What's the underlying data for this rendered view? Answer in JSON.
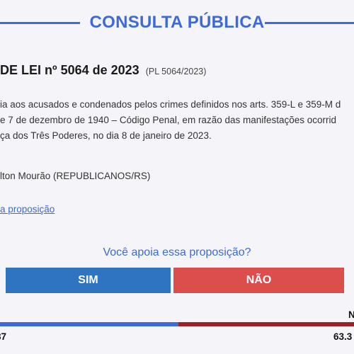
{
  "header": {
    "title": "CONSULTA PÚBLICA"
  },
  "proposal": {
    "title": "DE LEI nº 5064 de 2023",
    "code": "(PL 5064/2023)",
    "summary_lines": [
      "ia aos acusados e condenados pelos crimes definidos nos arts. 359-L e 359-M d",
      "e 7 de dezembro de 1940 – Código Penal, em razão das manifestações ocorrid",
      "ça dos Três Poderes, no dia 8 de janeiro de 2023."
    ],
    "author": "lton Mourão (REPUBLICANOS/RS)",
    "link": "a proposição"
  },
  "vote": {
    "question": "Você apoia essa proposição?",
    "yes_label": "SIM",
    "no_label": "NÃO"
  },
  "results": {
    "yes_fraction": 0.504,
    "yes_pct": "87",
    "no_pct": "63.3",
    "no_label_partial": "N",
    "colors": {
      "yes": "#3d6ad6",
      "no": "#9b2222"
    }
  }
}
